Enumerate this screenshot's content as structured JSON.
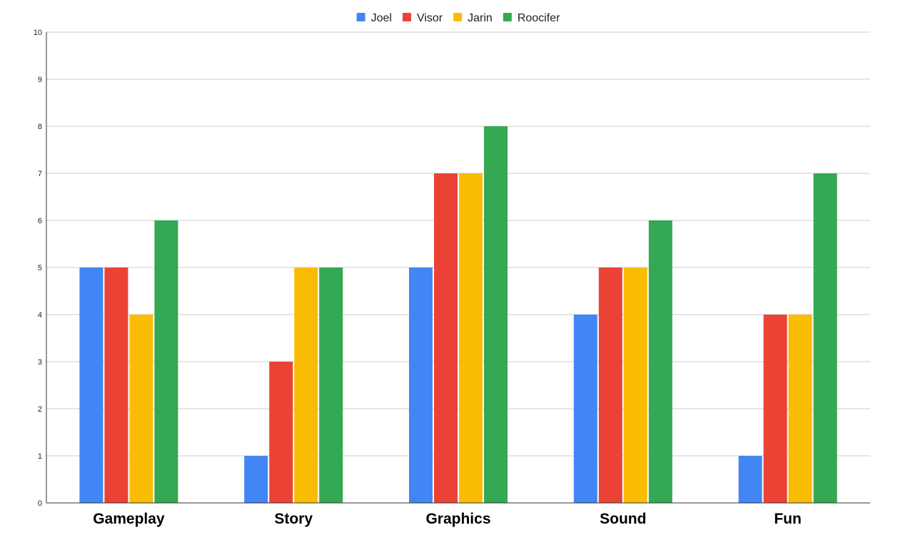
{
  "chart_data": {
    "type": "bar",
    "title": "",
    "xlabel": "",
    "ylabel": "",
    "categories": [
      "Gameplay",
      "Story",
      "Graphics",
      "Sound",
      "Fun"
    ],
    "series": [
      {
        "name": "Joel",
        "color": "#4285f4",
        "values": [
          5,
          1,
          5,
          4,
          1
        ]
      },
      {
        "name": "Visor",
        "color": "#ea4335",
        "values": [
          5,
          3,
          7,
          5,
          4
        ]
      },
      {
        "name": "Jarin",
        "color": "#fbbc04",
        "values": [
          4,
          5,
          7,
          5,
          4
        ]
      },
      {
        "name": "Roocifer",
        "color": "#34a853",
        "values": [
          6,
          5,
          8,
          6,
          7
        ]
      }
    ],
    "ylim": [
      0,
      10
    ],
    "yticks": [
      "0",
      "1",
      "2",
      "3",
      "4",
      "5",
      "6",
      "7",
      "8",
      "9",
      "10"
    ],
    "grid": true,
    "legend_position": "top"
  }
}
